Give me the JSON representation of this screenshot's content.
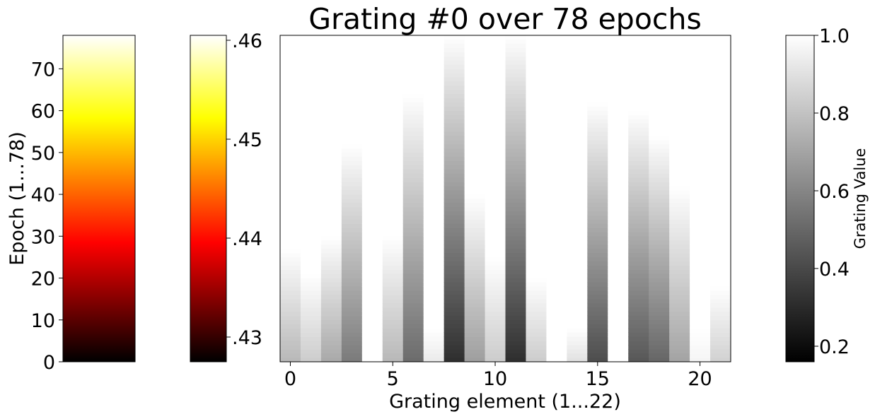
{
  "chart_data": [
    {
      "type": "heatmap",
      "role": "epoch-colorbar",
      "colormap": "hot",
      "ylabel": "Epoch (1...78)",
      "ylim": [
        0,
        78
      ],
      "yticks": [
        0,
        10,
        20,
        30,
        40,
        50,
        60,
        70
      ],
      "ytick_labels": [
        "0",
        "10",
        "20",
        "30",
        "40",
        "50",
        "60",
        "70"
      ]
    },
    {
      "type": "heatmap",
      "role": "value-colorbar",
      "colormap": "hot",
      "range": [
        0.4275,
        0.4605
      ],
      "ticks": [
        0.43,
        0.44,
        0.45,
        0.46
      ],
      "tick_labels": [
        ".43",
        ".44",
        ".45",
        ".46"
      ]
    },
    {
      "type": "heatmap",
      "role": "main",
      "colormap": "gray",
      "title": "Grating #0 over 78 epochs",
      "xlabel": "Grating element (1...22)",
      "ylabel": "",
      "xlim": [
        -0.5,
        21.5
      ],
      "ylim": [
        0,
        78
      ],
      "xticks": [
        0,
        5,
        10,
        15,
        20
      ],
      "xtick_labels": [
        "0",
        "5",
        "10",
        "15",
        "20"
      ],
      "elements": [
        {
          "element": 0,
          "value_at_epoch_0": 0.72,
          "converge_epoch": 27
        },
        {
          "element": 1,
          "value_at_epoch_0": 0.8,
          "converge_epoch": 21
        },
        {
          "element": 2,
          "value_at_epoch_0": 0.66,
          "converge_epoch": 30
        },
        {
          "element": 3,
          "value_at_epoch_0": 0.48,
          "converge_epoch": 52
        },
        {
          "element": 4,
          "value_at_epoch_0": 1.0,
          "converge_epoch": 0
        },
        {
          "element": 5,
          "value_at_epoch_0": 0.72,
          "converge_epoch": 30
        },
        {
          "element": 6,
          "value_at_epoch_0": 0.42,
          "converge_epoch": 64
        },
        {
          "element": 7,
          "value_at_epoch_0": 0.92,
          "converge_epoch": 8
        },
        {
          "element": 8,
          "value_at_epoch_0": 0.18,
          "converge_epoch": 78
        },
        {
          "element": 9,
          "value_at_epoch_0": 0.62,
          "converge_epoch": 40
        },
        {
          "element": 10,
          "value_at_epoch_0": 0.8,
          "converge_epoch": 25
        },
        {
          "element": 11,
          "value_at_epoch_0": 0.18,
          "converge_epoch": 78
        },
        {
          "element": 12,
          "value_at_epoch_0": 0.8,
          "converge_epoch": 20
        },
        {
          "element": 13,
          "value_at_epoch_0": 1.0,
          "converge_epoch": 0
        },
        {
          "element": 14,
          "value_at_epoch_0": 0.88,
          "converge_epoch": 8
        },
        {
          "element": 15,
          "value_at_epoch_0": 0.3,
          "converge_epoch": 62
        },
        {
          "element": 16,
          "value_at_epoch_0": 1.0,
          "converge_epoch": 0
        },
        {
          "element": 17,
          "value_at_epoch_0": 0.34,
          "converge_epoch": 60
        },
        {
          "element": 18,
          "value_at_epoch_0": 0.4,
          "converge_epoch": 54
        },
        {
          "element": 19,
          "value_at_epoch_0": 0.64,
          "converge_epoch": 42
        },
        {
          "element": 20,
          "value_at_epoch_0": 0.96,
          "converge_epoch": 8
        },
        {
          "element": 21,
          "value_at_epoch_0": 0.82,
          "converge_epoch": 18
        }
      ]
    },
    {
      "type": "heatmap",
      "role": "grating-value-colorbar",
      "colormap": "gray",
      "label": "Grating Value",
      "range": [
        0.16,
        1.0
      ],
      "ticks": [
        0.2,
        0.4,
        0.6,
        0.8,
        1.0
      ],
      "tick_labels": [
        "0.2",
        "0.4",
        "0.6",
        "0.8",
        "1.0"
      ]
    }
  ]
}
